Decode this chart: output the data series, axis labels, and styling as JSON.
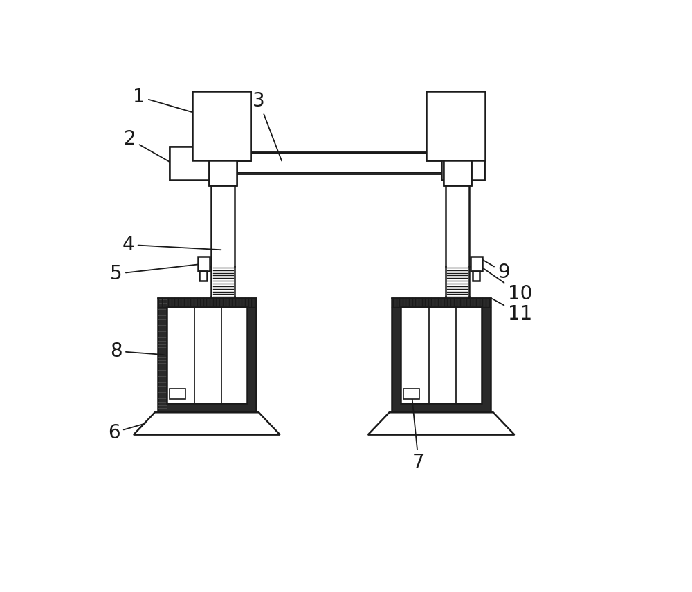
{
  "bg_color": "#ffffff",
  "lc": "#1a1a1a",
  "lw": 1.8,
  "label_fontsize": 20,
  "figsize": [
    10.0,
    8.56
  ],
  "dpi": 100
}
